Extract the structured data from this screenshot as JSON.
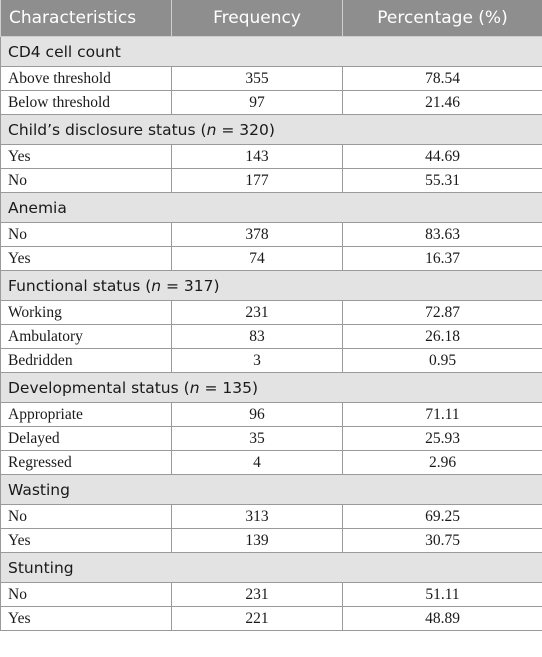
{
  "header": {
    "col1": "Characteristics",
    "col2": "Frequency",
    "col3": "Percentage (%)"
  },
  "sections": [
    {
      "title": "CD4 cell count",
      "rows": [
        {
          "label": "Above threshold",
          "frequency": "355",
          "percentage": "78.54"
        },
        {
          "label": "Below threshold",
          "frequency": "97",
          "percentage": "21.46"
        }
      ]
    },
    {
      "title": "Child’s disclosure status (",
      "n_var": "n",
      "n_value": " = 320)",
      "rows": [
        {
          "label": "Yes",
          "frequency": "143",
          "percentage": "44.69"
        },
        {
          "label": "No",
          "frequency": "177",
          "percentage": "55.31"
        }
      ]
    },
    {
      "title": "Anemia",
      "rows": [
        {
          "label": "No",
          "frequency": "378",
          "percentage": "83.63"
        },
        {
          "label": "Yes",
          "frequency": "74",
          "percentage": "16.37"
        }
      ]
    },
    {
      "title": "Functional status (",
      "n_var": "n",
      "n_value": " = 317)",
      "rows": [
        {
          "label": "Working",
          "frequency": "231",
          "percentage": "72.87"
        },
        {
          "label": "Ambulatory",
          "frequency": "83",
          "percentage": "26.18"
        },
        {
          "label": "Bedridden",
          "frequency": "3",
          "percentage": "0.95"
        }
      ]
    },
    {
      "title": "Developmental status (",
      "n_var": "n",
      "n_value": " = 135)",
      "rows": [
        {
          "label": "Appropriate",
          "frequency": "96",
          "percentage": "71.11"
        },
        {
          "label": "Delayed",
          "frequency": "35",
          "percentage": "25.93"
        },
        {
          "label": "Regressed",
          "frequency": "4",
          "percentage": "2.96"
        }
      ]
    },
    {
      "title": "Wasting",
      "rows": [
        {
          "label": "No",
          "frequency": "313",
          "percentage": "69.25"
        },
        {
          "label": "Yes",
          "frequency": "139",
          "percentage": "30.75"
        }
      ]
    },
    {
      "title": "Stunting",
      "rows": [
        {
          "label": "No",
          "frequency": "231",
          "percentage": "51.11"
        },
        {
          "label": "Yes",
          "frequency": "221",
          "percentage": "48.89"
        }
      ]
    }
  ]
}
